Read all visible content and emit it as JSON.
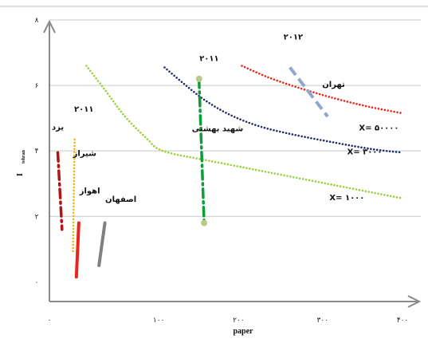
{
  "chart_data": {
    "type": "scatter",
    "xlabel": "paper",
    "ylabel": "I",
    "ylabel_sub": "tehran",
    "xlim": [
      0,
      420
    ],
    "ylim": [
      -0.6,
      8
    ],
    "x_ticks": [
      {
        "value": 0,
        "label": "۰"
      },
      {
        "value": 130,
        "label": "۱۰۰"
      },
      {
        "value": 225,
        "label": "۲۰۰"
      },
      {
        "value": 325,
        "label": "۳۰۰"
      },
      {
        "value": 420,
        "label": "۴۰۰"
      }
    ],
    "y_ticks": [
      {
        "value": 0,
        "label": "۰"
      },
      {
        "value": 2,
        "label": "۲"
      },
      {
        "value": 4,
        "label": "۴"
      },
      {
        "value": 6,
        "label": "۶"
      },
      {
        "value": 8,
        "label": "۸"
      }
    ],
    "grid": "horizontal",
    "series": [
      {
        "name": "X= ۵۰۰۰۰",
        "color": "#1f2d6b",
        "style": "dotted",
        "points": [
          [
            137,
            6.55
          ],
          [
            160,
            6.05
          ],
          [
            185,
            5.55
          ],
          [
            215,
            5.1
          ],
          [
            250,
            4.75
          ],
          [
            290,
            4.5
          ],
          [
            340,
            4.25
          ],
          [
            385,
            4.05
          ],
          [
            420,
            3.95
          ]
        ]
      },
      {
        "name": "X= ۳۰۰۰",
        "color": "#9bcf3c",
        "style": "dotted",
        "points": [
          [
            44,
            6.6
          ],
          [
            65,
            5.9
          ],
          [
            90,
            5.05
          ],
          [
            115,
            4.4
          ],
          [
            135,
            4.0
          ],
          [
            190,
            3.7
          ],
          [
            260,
            3.35
          ],
          [
            340,
            2.95
          ],
          [
            420,
            2.55
          ]
        ]
      },
      {
        "name": "X= ۱۰۰۰",
        "color": "#e8271c",
        "style": "dotted",
        "points": [
          [
            229,
            6.6
          ],
          [
            260,
            6.25
          ],
          [
            300,
            5.9
          ],
          [
            340,
            5.6
          ],
          [
            380,
            5.35
          ],
          [
            420,
            5.15
          ]
        ]
      },
      {
        "name": "",
        "color": "#8ea7d0",
        "style": "dashed",
        "points": [
          [
            286,
            6.55
          ],
          [
            331,
            5.05
          ]
        ]
      },
      {
        "name": "",
        "color": "#0f9d3a",
        "style": "dashdot",
        "points": [
          [
            178,
            6.2
          ],
          [
            184,
            1.8
          ]
        ],
        "markers": true
      },
      {
        "name": "",
        "color": "#b31313",
        "style": "dashdot",
        "points": [
          [
            10,
            3.95
          ],
          [
            15,
            1.6
          ]
        ]
      },
      {
        "name": "",
        "color": "#f2b21b",
        "style": "dotted",
        "points": [
          [
            30,
            4.35
          ],
          [
            28,
            0.85
          ]
        ]
      },
      {
        "name": "",
        "color": "#e8271c",
        "style": "solid",
        "points": [
          [
            35,
            1.8
          ],
          [
            32,
            0.15
          ]
        ]
      },
      {
        "name": "",
        "color": "#808080",
        "style": "solid",
        "points": [
          [
            66,
            1.8
          ],
          [
            59,
            0.5
          ]
        ]
      }
    ],
    "annotations": [
      {
        "text": "۲۰۱۲",
        "x": 290,
        "y": 7.4
      },
      {
        "text": "تهران",
        "x": 338,
        "y": 5.95
      },
      {
        "text": "۲۰۱۱",
        "x": 190,
        "y": 6.75
      },
      {
        "text": "۲۰۱۱",
        "x": 41,
        "y": 5.2
      },
      {
        "text": "شهید بهشتی",
        "x": 200,
        "y": 4.6
      },
      {
        "text": "X= ۵۰۰۰۰",
        "x": 392,
        "y": 4.62
      },
      {
        "text": "X= ۳۰۰۰",
        "x": 375,
        "y": 3.9
      },
      {
        "text": "X= ۱۰۰۰",
        "x": 354,
        "y": 2.5
      },
      {
        "text": "یزد",
        "x": 10,
        "y": 4.65
      },
      {
        "text": "شیراز",
        "x": 42,
        "y": 3.85
      },
      {
        "text": "اهواز",
        "x": 48,
        "y": 2.7
      },
      {
        "text": "اصفهان",
        "x": 85,
        "y": 2.45
      }
    ]
  }
}
